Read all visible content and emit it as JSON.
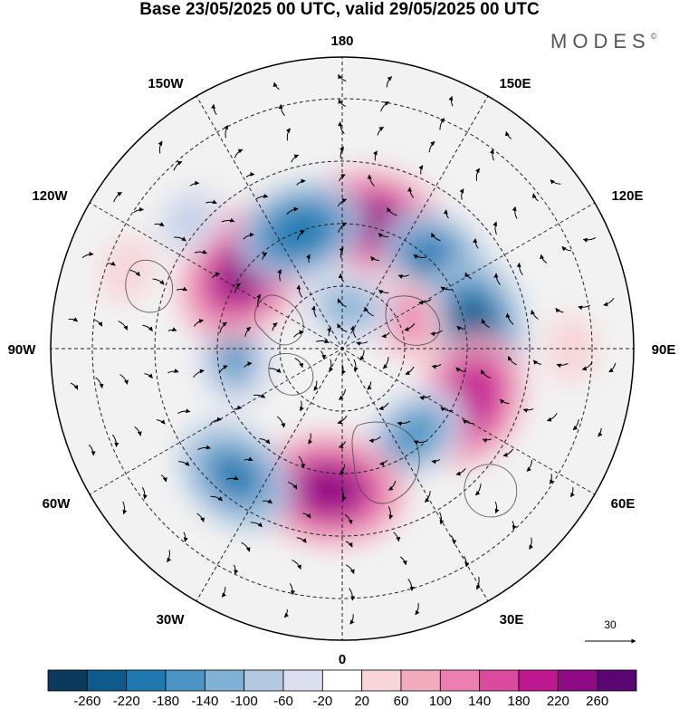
{
  "title": "Base 23/05/2025 00 UTC, valid 29/05/2025 00 UTC",
  "brand": "MODES",
  "brand_mark": "©",
  "longitude_labels": {
    "top": "180",
    "bottom": "0",
    "left": "90W",
    "right": "90E",
    "upper_left": "150W",
    "upper_right": "150E",
    "mid_upper_left": "120W",
    "mid_upper_right": "120E",
    "mid_lower_left": "60W",
    "mid_lower_right": "60E",
    "lower_left": "30W",
    "lower_right": "30E"
  },
  "vector_reference": {
    "value": "30"
  },
  "colorbar": {
    "ticks": [
      "-260",
      "-220",
      "-180",
      "-140",
      "-100",
      "-60",
      "-20",
      "20",
      "60",
      "100",
      "140",
      "180",
      "220",
      "260"
    ],
    "colors": [
      "#0b3a5c",
      "#0f5a8c",
      "#1f78b0",
      "#4a95c4",
      "#7fb0d5",
      "#b3c9e2",
      "#dcdff0",
      "#ffffff",
      "#f8d5d8",
      "#f2aabd",
      "#ea7fb0",
      "#dc4aa0",
      "#be188f",
      "#8f0a84",
      "#5a0670"
    ]
  },
  "anomalies": [
    {
      "lon": 165,
      "lat": 59,
      "value": 230
    },
    {
      "lon": 130,
      "lat": 60,
      "value": -200
    },
    {
      "lon": 100,
      "lat": 58,
      "value": -220
    },
    {
      "lon": 115,
      "lat": 73,
      "value": 120
    },
    {
      "lon": 68,
      "lat": 57,
      "value": 220
    },
    {
      "lon": 40,
      "lat": 63,
      "value": -160
    },
    {
      "lon": -5,
      "lat": 56,
      "value": 250
    },
    {
      "lon": -40,
      "lat": 50,
      "value": -190
    },
    {
      "lon": -85,
      "lat": 64,
      "value": -140
    },
    {
      "lon": -128,
      "lat": 60,
      "value": 250
    },
    {
      "lon": -160,
      "lat": 60,
      "value": -200
    },
    {
      "lon": 172,
      "lat": 80,
      "value": -120
    },
    {
      "lon": -130,
      "lat": 42,
      "value": -80
    },
    {
      "lon": -110,
      "lat": 35,
      "value": 60
    },
    {
      "lon": 90,
      "lat": 35,
      "value": 60
    }
  ]
}
